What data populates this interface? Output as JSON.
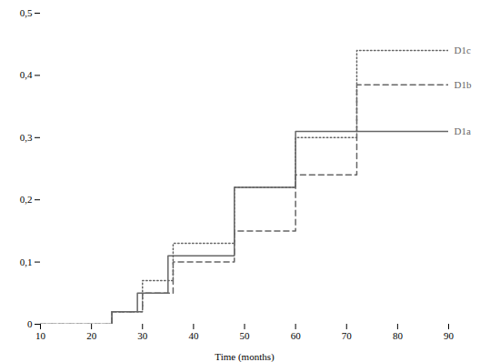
{
  "chart_data": {
    "type": "line",
    "xlabel": "Time (months)",
    "xlim": [
      10,
      90
    ],
    "ylim": [
      0,
      0.5
    ],
    "xticks": [
      10,
      20,
      30,
      40,
      50,
      60,
      70,
      80,
      90
    ],
    "yticks": [
      0,
      {
        "value": 0.1,
        "label": "0,1"
      },
      {
        "value": 0.2,
        "label": "0,2"
      },
      {
        "value": 0.3,
        "label": "0,3"
      },
      {
        "value": 0.4,
        "label": "0,4"
      },
      {
        "value": 0.5,
        "label": "0,5"
      }
    ],
    "grid": false,
    "color": "#666666",
    "series": [
      {
        "name": "D1a",
        "color": "#666666",
        "line_style": "solid",
        "x": [
          10,
          24,
          24,
          29,
          29,
          35,
          35,
          48,
          48,
          60,
          60,
          90
        ],
        "values": [
          0,
          0,
          0.02,
          0.02,
          0.05,
          0.05,
          0.11,
          0.11,
          0.22,
          0.22,
          0.31,
          0.31
        ]
      },
      {
        "name": "D1b",
        "color": "#666666",
        "line_style": "dashed",
        "x": [
          10,
          24,
          24,
          30,
          30,
          36,
          36,
          48,
          48,
          60,
          60,
          72,
          72,
          90
        ],
        "values": [
          0,
          0,
          0.02,
          0.02,
          0.05,
          0.05,
          0.1,
          0.1,
          0.15,
          0.15,
          0.24,
          0.24,
          0.385,
          0.385
        ]
      },
      {
        "name": "D1c",
        "color": "#666666",
        "line_style": "dotted",
        "x": [
          10,
          24,
          24,
          30,
          30,
          36,
          36,
          48,
          48,
          60,
          60,
          72,
          72,
          90
        ],
        "values": [
          0,
          0,
          0.02,
          0.02,
          0.07,
          0.07,
          0.13,
          0.13,
          0.22,
          0.22,
          0.3,
          0.3,
          0.44,
          0.44
        ]
      }
    ],
    "annotations": [
      {
        "text": "D1c",
        "y": 0.44
      },
      {
        "text": "D1b",
        "y": 0.385
      },
      {
        "text": "D1a",
        "y": 0.31
      }
    ]
  }
}
